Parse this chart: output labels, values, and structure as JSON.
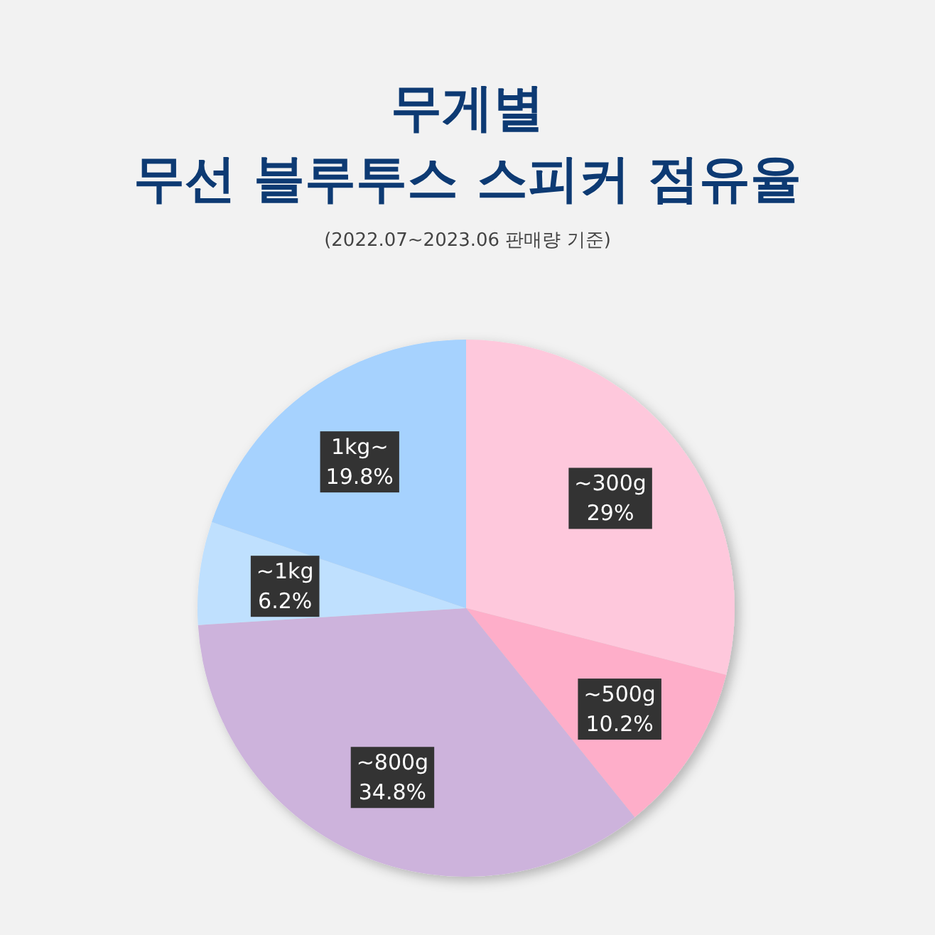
{
  "chart_data": {
    "type": "pie",
    "title": "무게별\n무선 블루투스 스피커 점유율",
    "annotations": [
      "(2022.07~2023.06 판매량 기준)"
    ],
    "categories": [
      "~300g",
      "~500g",
      "~800g",
      "~1kg",
      "1kg~"
    ],
    "values": [
      29,
      10.2,
      34.8,
      6.2,
      19.8
    ],
    "value_labels": [
      "29%",
      "10.2%",
      "34.8%",
      "6.2%",
      "19.8%"
    ],
    "colors": [
      "#fec8dc",
      "#feaec9",
      "#cdb3dc",
      "#bfe0fe",
      "#a6d2fe"
    ]
  }
}
